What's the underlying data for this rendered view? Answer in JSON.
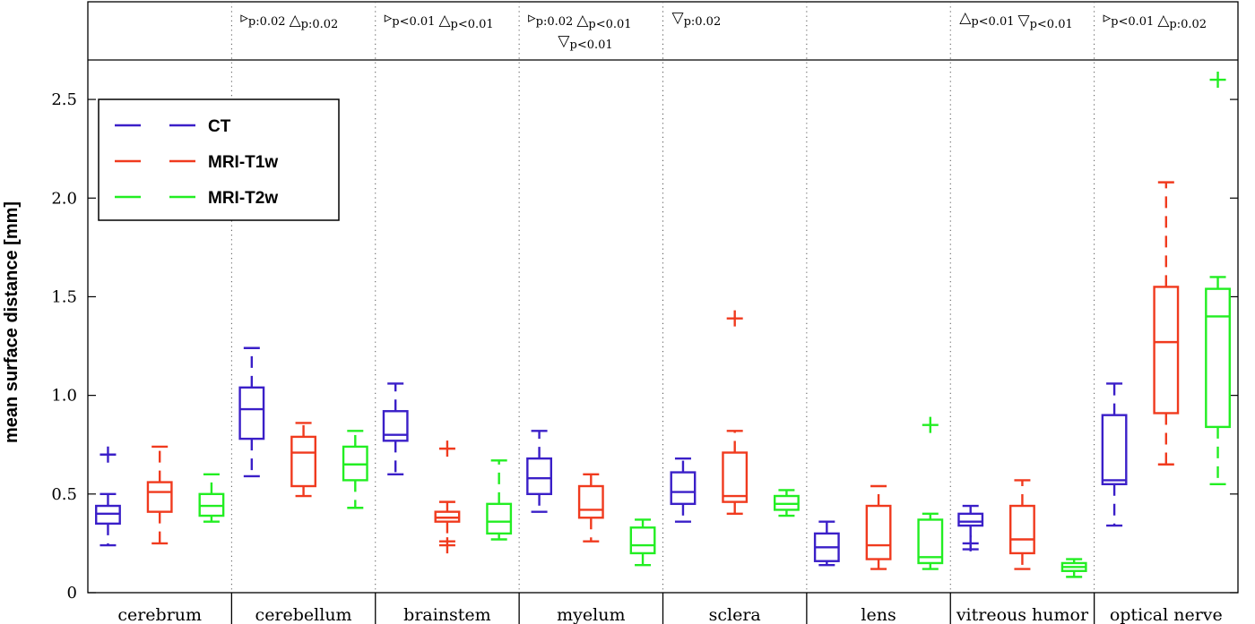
{
  "chart_data": {
    "type": "box",
    "ylabel": "mean surface distance [mm]",
    "ylim": [
      0,
      2.7
    ],
    "yticks": [
      {
        "value": 0,
        "label": "0"
      },
      {
        "value": 0.5,
        "label": "0.5"
      },
      {
        "value": 1.0,
        "label": "1.0"
      },
      {
        "value": 1.5,
        "label": "1.5"
      },
      {
        "value": 2.0,
        "label": "2.0"
      },
      {
        "value": 2.5,
        "label": "2.5"
      }
    ],
    "legend_position": "top-left",
    "grid": false,
    "categories": [
      "cerebrum",
      "cerebellum",
      "brainstem",
      "myelum",
      "sclera",
      "lens",
      "vitreous humor",
      "optical nerve"
    ],
    "annotations": [
      [],
      [
        {
          "sym": "▹",
          "p": "p:0.02"
        },
        {
          "sym": "△",
          "p": "p:0.02"
        }
      ],
      [
        {
          "sym": "▹",
          "p": "p<0.01"
        },
        {
          "sym": "△",
          "p": "p<0.01"
        }
      ],
      [
        {
          "sym": "▹",
          "p": "p:0.02"
        },
        {
          "sym": "△",
          "p": "p<0.01"
        },
        {
          "sym": "▽",
          "p": "p<0.01",
          "line": 2
        }
      ],
      [
        {
          "sym": "▽",
          "p": "p:0.02"
        }
      ],
      [],
      [
        {
          "sym": "△",
          "p": "p<0.01"
        },
        {
          "sym": "▽",
          "p": "p<0.01"
        }
      ],
      [
        {
          "sym": "▹",
          "p": "p<0.01"
        },
        {
          "sym": "△",
          "p": "p:0.02"
        }
      ]
    ],
    "series": [
      {
        "name": "CT",
        "color": "#3a1fc8",
        "boxes": [
          {
            "wlo": 0.24,
            "q1": 0.35,
            "med": 0.4,
            "q3": 0.44,
            "whi": 0.5,
            "outliers": [
              0.7
            ]
          },
          {
            "wlo": 0.59,
            "q1": 0.78,
            "med": 0.93,
            "q3": 1.04,
            "whi": 1.24,
            "outliers": []
          },
          {
            "wlo": 0.6,
            "q1": 0.77,
            "med": 0.8,
            "q3": 0.92,
            "whi": 1.06,
            "outliers": []
          },
          {
            "wlo": 0.41,
            "q1": 0.5,
            "med": 0.58,
            "q3": 0.68,
            "whi": 0.82,
            "outliers": []
          },
          {
            "wlo": 0.36,
            "q1": 0.45,
            "med": 0.51,
            "q3": 0.61,
            "whi": 0.68,
            "outliers": []
          },
          {
            "wlo": 0.14,
            "q1": 0.16,
            "med": 0.23,
            "q3": 0.3,
            "whi": 0.36,
            "outliers": []
          },
          {
            "wlo": 0.22,
            "q1": 0.34,
            "med": 0.36,
            "q3": 0.4,
            "whi": 0.44,
            "outliers": [
              0.25
            ]
          },
          {
            "wlo": 0.34,
            "q1": 0.55,
            "med": 0.57,
            "q3": 0.9,
            "whi": 1.06,
            "outliers": []
          }
        ]
      },
      {
        "name": "MRI-T1w",
        "color": "#f03a1e",
        "boxes": [
          {
            "wlo": 0.25,
            "q1": 0.41,
            "med": 0.51,
            "q3": 0.56,
            "whi": 0.74,
            "outliers": []
          },
          {
            "wlo": 0.49,
            "q1": 0.54,
            "med": 0.71,
            "q3": 0.79,
            "whi": 0.86,
            "outliers": []
          },
          {
            "wlo": 0.26,
            "q1": 0.36,
            "med": 0.38,
            "q3": 0.41,
            "whi": 0.46,
            "outliers": [
              0.73,
              0.24
            ]
          },
          {
            "wlo": 0.26,
            "q1": 0.38,
            "med": 0.42,
            "q3": 0.54,
            "whi": 0.6,
            "outliers": []
          },
          {
            "wlo": 0.4,
            "q1": 0.46,
            "med": 0.49,
            "q3": 0.71,
            "whi": 0.82,
            "outliers": [
              1.39
            ]
          },
          {
            "wlo": 0.12,
            "q1": 0.17,
            "med": 0.24,
            "q3": 0.44,
            "whi": 0.54,
            "outliers": []
          },
          {
            "wlo": 0.12,
            "q1": 0.2,
            "med": 0.27,
            "q3": 0.44,
            "whi": 0.57,
            "outliers": []
          },
          {
            "wlo": 0.65,
            "q1": 0.91,
            "med": 1.27,
            "q3": 1.55,
            "whi": 2.08,
            "outliers": []
          }
        ]
      },
      {
        "name": "MRI-T2w",
        "color": "#22ee22",
        "boxes": [
          {
            "wlo": 0.36,
            "q1": 0.39,
            "med": 0.44,
            "q3": 0.5,
            "whi": 0.6,
            "outliers": []
          },
          {
            "wlo": 0.43,
            "q1": 0.57,
            "med": 0.65,
            "q3": 0.74,
            "whi": 0.82,
            "outliers": []
          },
          {
            "wlo": 0.27,
            "q1": 0.3,
            "med": 0.36,
            "q3": 0.45,
            "whi": 0.67,
            "outliers": []
          },
          {
            "wlo": 0.14,
            "q1": 0.2,
            "med": 0.24,
            "q3": 0.33,
            "whi": 0.37,
            "outliers": []
          },
          {
            "wlo": 0.39,
            "q1": 0.42,
            "med": 0.45,
            "q3": 0.49,
            "whi": 0.52,
            "outliers": []
          },
          {
            "wlo": 0.12,
            "q1": 0.15,
            "med": 0.18,
            "q3": 0.37,
            "whi": 0.4,
            "outliers": [
              0.85
            ]
          },
          {
            "wlo": 0.08,
            "q1": 0.11,
            "med": 0.13,
            "q3": 0.15,
            "whi": 0.17,
            "outliers": []
          },
          {
            "wlo": 0.55,
            "q1": 0.84,
            "med": 1.4,
            "q3": 1.54,
            "whi": 1.6,
            "outliers": [
              2.6
            ]
          }
        ]
      }
    ]
  }
}
